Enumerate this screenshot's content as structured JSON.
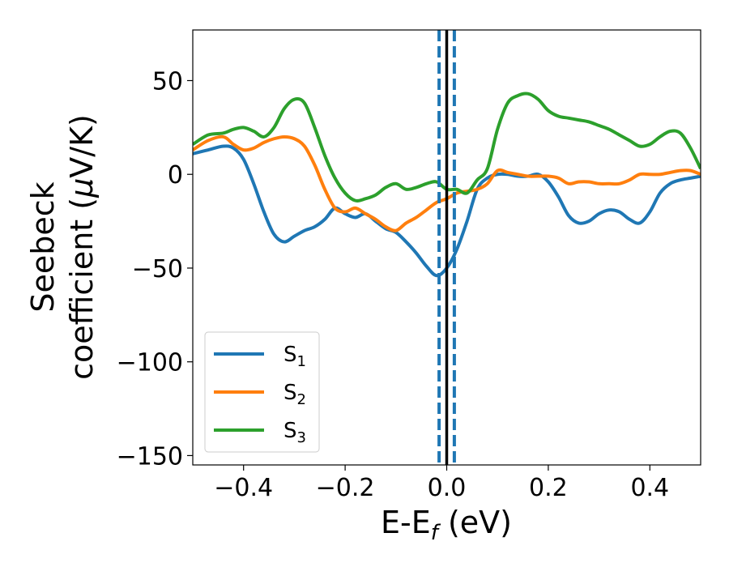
{
  "chart_data": {
    "type": "line",
    "xlabel": "E-E",
    "xlabel_sub": "f",
    "xlabel_unit": " (eV)",
    "ylabel_line1": "Seebeck",
    "ylabel_line2_text": "coefficient  (",
    "ylabel_line2_mu": "μ",
    "ylabel_line2_unit": "V/K)",
    "xlim": [
      -0.5,
      0.5
    ],
    "ylim": [
      -155,
      77
    ],
    "x_ticks": [
      -0.4,
      -0.2,
      0.0,
      0.2,
      0.4
    ],
    "x_tick_labels": [
      "−0.4",
      "−0.2",
      "0.0",
      "0.2",
      "0.4"
    ],
    "y_ticks": [
      -150,
      -100,
      -50,
      0,
      50
    ],
    "y_tick_labels": [
      "−150",
      "−100",
      "−50",
      "0",
      "50"
    ],
    "legend_position": "lower-left",
    "series": [
      {
        "name": "S",
        "sub": "1",
        "color": "#1f77b4",
        "x": [
          -0.5,
          -0.47,
          -0.44,
          -0.42,
          -0.4,
          -0.38,
          -0.36,
          -0.34,
          -0.32,
          -0.3,
          -0.28,
          -0.26,
          -0.24,
          -0.22,
          -0.2,
          -0.18,
          -0.16,
          -0.14,
          -0.12,
          -0.1,
          -0.08,
          -0.06,
          -0.04,
          -0.02,
          0.0,
          0.02,
          0.04,
          0.06,
          0.08,
          0.1,
          0.12,
          0.14,
          0.16,
          0.18,
          0.2,
          0.22,
          0.24,
          0.26,
          0.28,
          0.3,
          0.32,
          0.34,
          0.36,
          0.38,
          0.4,
          0.42,
          0.44,
          0.46,
          0.48,
          0.5
        ],
        "y": [
          11,
          13,
          15,
          14,
          8,
          -5,
          -20,
          -32,
          -36,
          -33,
          -30,
          -28,
          -24,
          -18,
          -21,
          -23,
          -21,
          -25,
          -29,
          -31,
          -36,
          -42,
          -49,
          -54,
          -50,
          -40,
          -25,
          -8,
          -2,
          0,
          0,
          -1,
          -1,
          0,
          -4,
          -12,
          -22,
          -26,
          -25,
          -21,
          -19,
          -20,
          -24,
          -26,
          -20,
          -10,
          -5,
          -3,
          -2,
          -1
        ]
      },
      {
        "name": "S",
        "sub": "2",
        "color": "#ff7f0e",
        "x": [
          -0.5,
          -0.47,
          -0.44,
          -0.42,
          -0.4,
          -0.38,
          -0.36,
          -0.34,
          -0.32,
          -0.3,
          -0.28,
          -0.26,
          -0.24,
          -0.22,
          -0.2,
          -0.18,
          -0.16,
          -0.14,
          -0.12,
          -0.1,
          -0.08,
          -0.06,
          -0.04,
          -0.02,
          0.0,
          0.02,
          0.04,
          0.06,
          0.08,
          0.1,
          0.12,
          0.14,
          0.16,
          0.18,
          0.2,
          0.22,
          0.24,
          0.26,
          0.28,
          0.3,
          0.32,
          0.34,
          0.36,
          0.38,
          0.4,
          0.42,
          0.44,
          0.46,
          0.48,
          0.5
        ],
        "y": [
          13,
          18,
          20,
          16,
          13,
          14,
          17,
          19,
          20,
          19,
          15,
          5,
          -8,
          -18,
          -20,
          -18,
          -21,
          -24,
          -28,
          -30,
          -26,
          -23,
          -19,
          -15,
          -13,
          -10,
          -9,
          -8,
          -5,
          2,
          1,
          0,
          -1,
          -1,
          -1,
          -2,
          -5,
          -4,
          -4,
          -5,
          -5,
          -5,
          -3,
          0,
          0,
          0,
          1,
          2,
          2,
          0
        ]
      },
      {
        "name": "S",
        "sub": "3",
        "color": "#2ca02c",
        "x": [
          -0.5,
          -0.47,
          -0.44,
          -0.42,
          -0.4,
          -0.38,
          -0.36,
          -0.34,
          -0.32,
          -0.3,
          -0.28,
          -0.26,
          -0.24,
          -0.22,
          -0.2,
          -0.18,
          -0.16,
          -0.14,
          -0.12,
          -0.1,
          -0.08,
          -0.06,
          -0.04,
          -0.02,
          0.0,
          0.02,
          0.04,
          0.06,
          0.08,
          0.1,
          0.12,
          0.14,
          0.16,
          0.18,
          0.2,
          0.22,
          0.24,
          0.26,
          0.28,
          0.3,
          0.32,
          0.34,
          0.36,
          0.38,
          0.4,
          0.42,
          0.44,
          0.46,
          0.48,
          0.5
        ],
        "y": [
          16,
          21,
          22,
          24,
          25,
          23,
          20,
          25,
          35,
          40,
          38,
          25,
          10,
          -2,
          -10,
          -14,
          -13,
          -11,
          -7,
          -5,
          -8,
          -7,
          -5,
          -4,
          -8,
          -8,
          -10,
          -3,
          3,
          24,
          38,
          42,
          43,
          40,
          34,
          31,
          30,
          29,
          28,
          26,
          24,
          21,
          18,
          15,
          16,
          20,
          23,
          22,
          14,
          3
        ]
      }
    ],
    "vlines": [
      {
        "x": -0.015,
        "color": "#1f77b4",
        "style": "dashed"
      },
      {
        "x": 0.015,
        "color": "#1f77b4",
        "style": "dashed"
      },
      {
        "x": 0.0,
        "color": "#000000",
        "style": "solid"
      }
    ]
  }
}
